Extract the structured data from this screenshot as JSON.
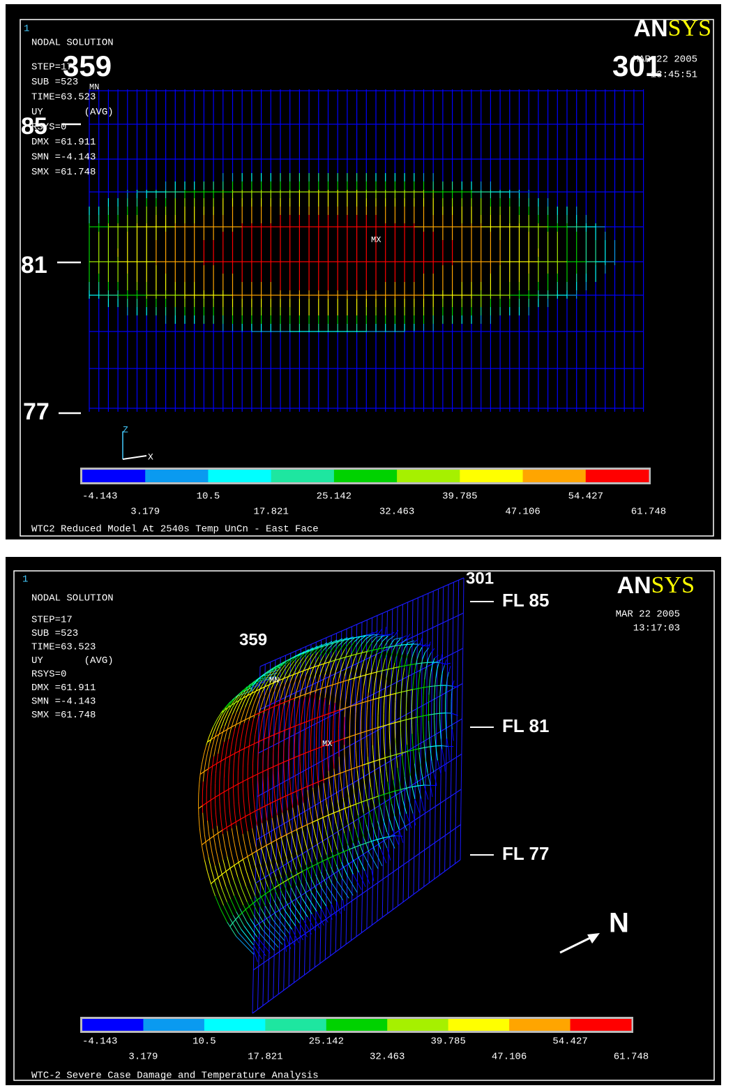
{
  "panels": [
    {
      "id_label": "1",
      "header": "NODAL SOLUTION",
      "info": [
        "STEP=17",
        "SUB =523",
        "TIME=63.523",
        "UY       (AVG)",
        "RSYS=0",
        "DMX =61.911",
        "SMN =-4.143",
        "SMX =61.748"
      ],
      "date": "MAR 22 2005",
      "time": "13:45:51",
      "mn": "MN",
      "mx": "MX",
      "logo": {
        "an": "AN",
        "sys": "SYS"
      },
      "axes": [
        "Z",
        "X"
      ],
      "callouts": [
        "359",
        "301",
        "85",
        "81",
        "77"
      ],
      "legend": {
        "labels": [
          "-4.143",
          "3.179",
          "10.5",
          "17.821",
          "25.142",
          "32.463",
          "39.785",
          "47.106",
          "54.427",
          "61.748"
        ],
        "colors": [
          "#0000ff",
          "#0a9af0",
          "#00ffff",
          "#1ee6a0",
          "#00d200",
          "#a6f000",
          "#ffff00",
          "#ffa500",
          "#ff0000"
        ]
      },
      "title": "WTC2 Reduced Model At 2540s Temp UnCn - East Face"
    },
    {
      "id_label": "1",
      "header": "NODAL SOLUTION",
      "info": [
        "STEP=17",
        "SUB =523",
        "TIME=63.523",
        "UY       (AVG)",
        "RSYS=0",
        "DMX =61.911",
        "SMN =-4.143",
        "SMX =61.748"
      ],
      "date": "MAR 22 2005",
      "time": "13:17:03",
      "mn": "MN",
      "mx": "MX",
      "logo": {
        "an": "AN",
        "sys": "SYS"
      },
      "callouts": [
        "301",
        "359",
        "FL 85",
        "FL 81",
        "FL 77",
        "N"
      ],
      "legend": {
        "labels": [
          "-4.143",
          "3.179",
          "10.5",
          "17.821",
          "25.142",
          "32.463",
          "39.785",
          "47.106",
          "54.427",
          "61.748"
        ],
        "colors": [
          "#0000ff",
          "#0a9af0",
          "#00ffff",
          "#1ee6a0",
          "#00d200",
          "#a6f000",
          "#ffff00",
          "#ffa500",
          "#ff0000"
        ]
      },
      "title": "WTC-2 Severe Case Damage and Temperature Analysis"
    }
  ]
}
